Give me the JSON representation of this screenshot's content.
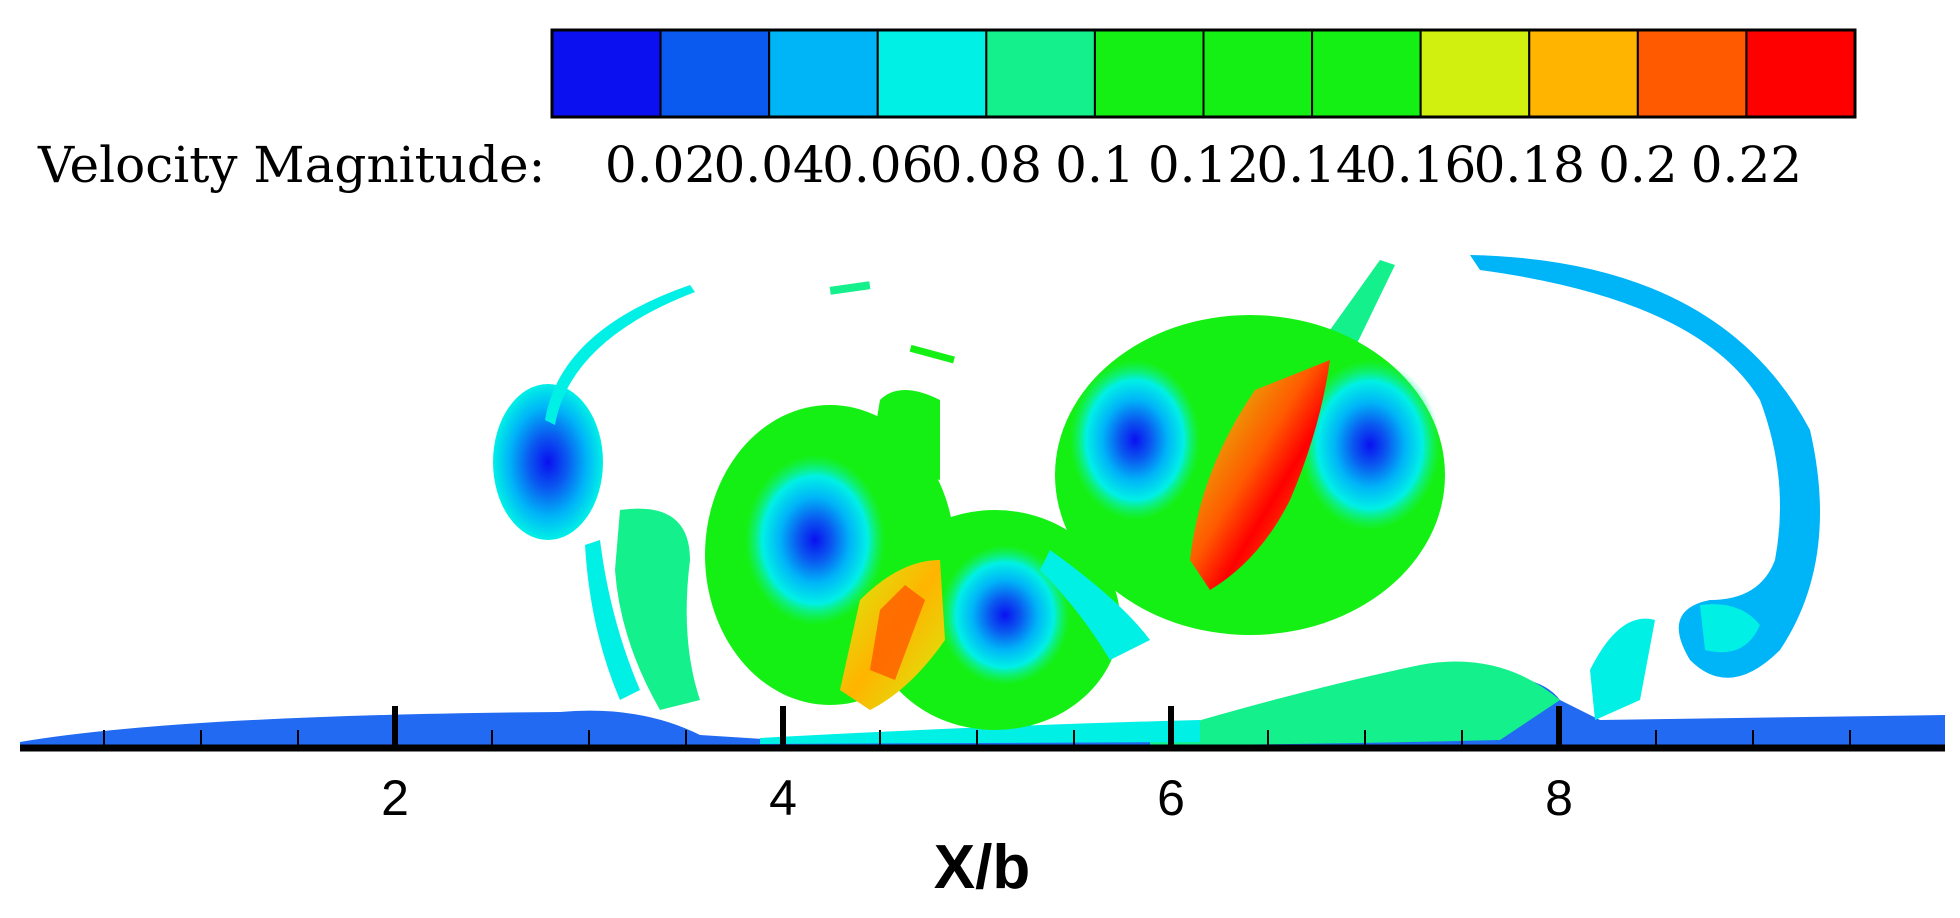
{
  "chart_data": {
    "type": "heatmap",
    "title": "",
    "colorbar": {
      "label": "Velocity Magnitude:",
      "levels": [
        "0.02",
        "0.04",
        "0.06",
        "0.08",
        "0.1",
        "0.12",
        "0.14",
        "0.16",
        "0.18",
        "0.2",
        "0.22"
      ],
      "colors": [
        "#0a10f0",
        "#0a5af0",
        "#00b4f8",
        "#00f0e6",
        "#14f08c",
        "#14f014",
        "#14f014",
        "#14f014",
        "#d2f00f",
        "#ffb400",
        "#ff5a00",
        "#ff0000"
      ]
    },
    "xlabel": "X/b",
    "xlim": [
      0,
      9.8
    ],
    "x_ticks": [
      2,
      4,
      6,
      8
    ],
    "x_minor_ticks": [
      0.5,
      1,
      1.5,
      2.5,
      3,
      3.5,
      4.5,
      5,
      5.5,
      6.5,
      7,
      7.5,
      8.5,
      9,
      9.5
    ],
    "structures": [
      {
        "name": "vortex-small-left",
        "x": 2.8,
        "z": 2.4,
        "peak_velocity": 0.04
      },
      {
        "name": "vortex-pair-center-left",
        "x": 4.2,
        "z": 1.6,
        "peak_velocity": 0.18
      },
      {
        "name": "vortex-center-right",
        "x": 5.2,
        "z": 1.1,
        "peak_velocity": 0.16
      },
      {
        "name": "vortex-pair-upper-right",
        "x": 6.2,
        "z": 2.5,
        "peak_velocity": 0.22
      },
      {
        "name": "vortex-curl-far-right",
        "x": 8.9,
        "z": 0.9,
        "peak_velocity": 0.06
      },
      {
        "name": "ground-boundary-layer",
        "x": 4.9,
        "z": 0.05,
        "peak_velocity": 0.12
      }
    ]
  }
}
